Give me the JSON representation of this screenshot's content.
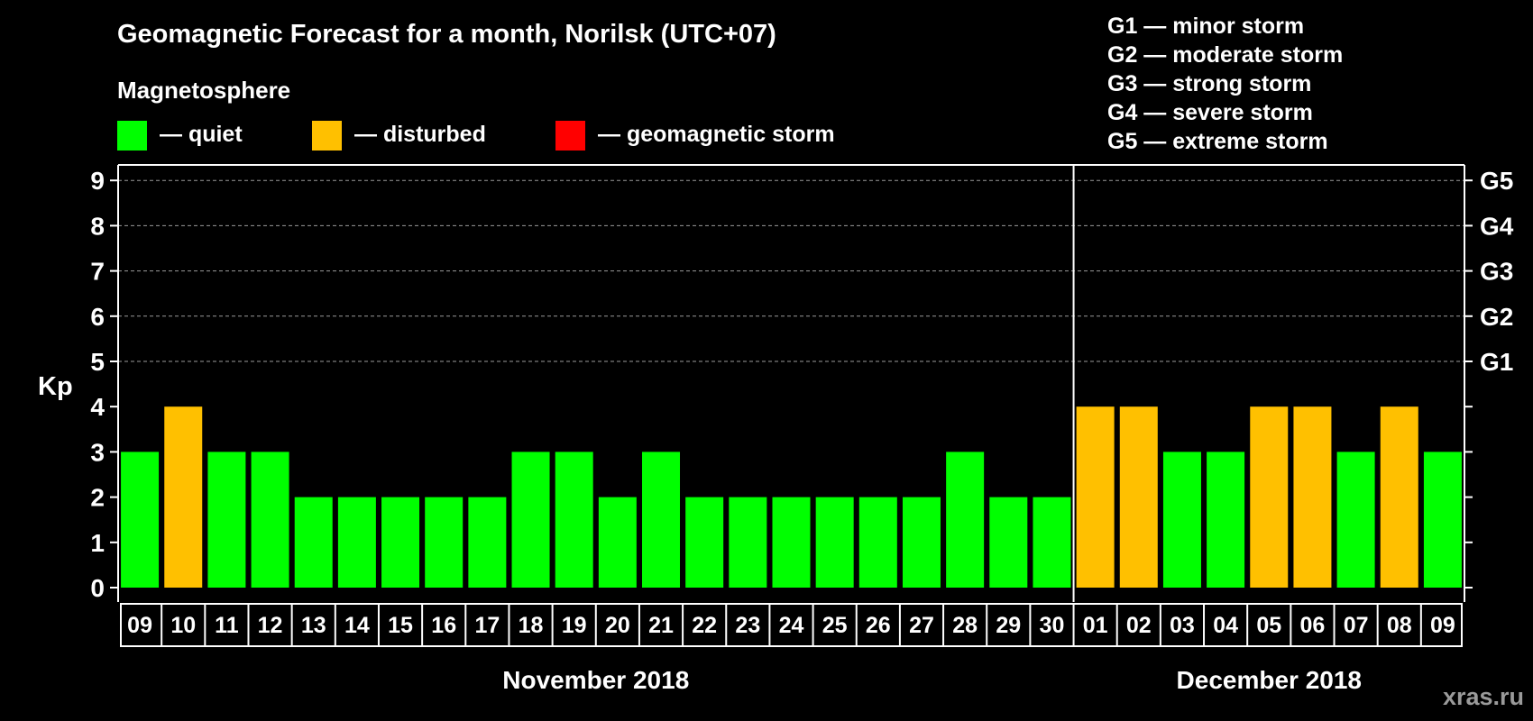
{
  "chart_data": {
    "type": "bar",
    "title": "Geomagnetic Forecast for a month, Norilsk (UTC+07)",
    "legend": {
      "heading": "Magnetosphere",
      "items": [
        {
          "label": "— quiet",
          "color": "#00ff00"
        },
        {
          "label": "— disturbed",
          "color": "#ffc000"
        },
        {
          "label": "— geomagnetic storm",
          "color": "#ff0000"
        }
      ]
    },
    "g_scale": [
      "G1 — minor storm",
      "G2 — moderate storm",
      "G3 — strong storm",
      "G4 — severe storm",
      "G5 — extreme storm"
    ],
    "ylabel": "Kp",
    "ylim": [
      0,
      9
    ],
    "yticks": [
      0,
      1,
      2,
      3,
      4,
      5,
      6,
      7,
      8,
      9
    ],
    "right_axis_labels": [
      {
        "value": 5,
        "label": "G1"
      },
      {
        "value": 6,
        "label": "G2"
      },
      {
        "value": 7,
        "label": "G3"
      },
      {
        "value": 8,
        "label": "G4"
      },
      {
        "value": 9,
        "label": "G5"
      }
    ],
    "gridlines": [
      5,
      6,
      7,
      8,
      9
    ],
    "categories": [
      "09",
      "10",
      "11",
      "12",
      "13",
      "14",
      "15",
      "16",
      "17",
      "18",
      "19",
      "20",
      "21",
      "22",
      "23",
      "24",
      "25",
      "26",
      "27",
      "28",
      "29",
      "30",
      "01",
      "02",
      "03",
      "04",
      "05",
      "06",
      "07",
      "08",
      "09"
    ],
    "values": [
      3,
      4,
      3,
      3,
      2,
      2,
      2,
      2,
      2,
      3,
      3,
      2,
      3,
      2,
      2,
      2,
      2,
      2,
      2,
      3,
      2,
      2,
      4,
      4,
      3,
      3,
      4,
      4,
      3,
      4,
      3
    ],
    "colors": [
      "#00ff00",
      "#ffc000",
      "#00ff00",
      "#00ff00",
      "#00ff00",
      "#00ff00",
      "#00ff00",
      "#00ff00",
      "#00ff00",
      "#00ff00",
      "#00ff00",
      "#00ff00",
      "#00ff00",
      "#00ff00",
      "#00ff00",
      "#00ff00",
      "#00ff00",
      "#00ff00",
      "#00ff00",
      "#00ff00",
      "#00ff00",
      "#00ff00",
      "#ffc000",
      "#ffc000",
      "#00ff00",
      "#00ff00",
      "#ffc000",
      "#ffc000",
      "#00ff00",
      "#ffc000",
      "#00ff00"
    ],
    "months": [
      {
        "label": "November 2018",
        "start_index": 0,
        "count": 22
      },
      {
        "label": "December 2018",
        "start_index": 22,
        "count": 9
      }
    ]
  },
  "watermark": "xras.ru"
}
